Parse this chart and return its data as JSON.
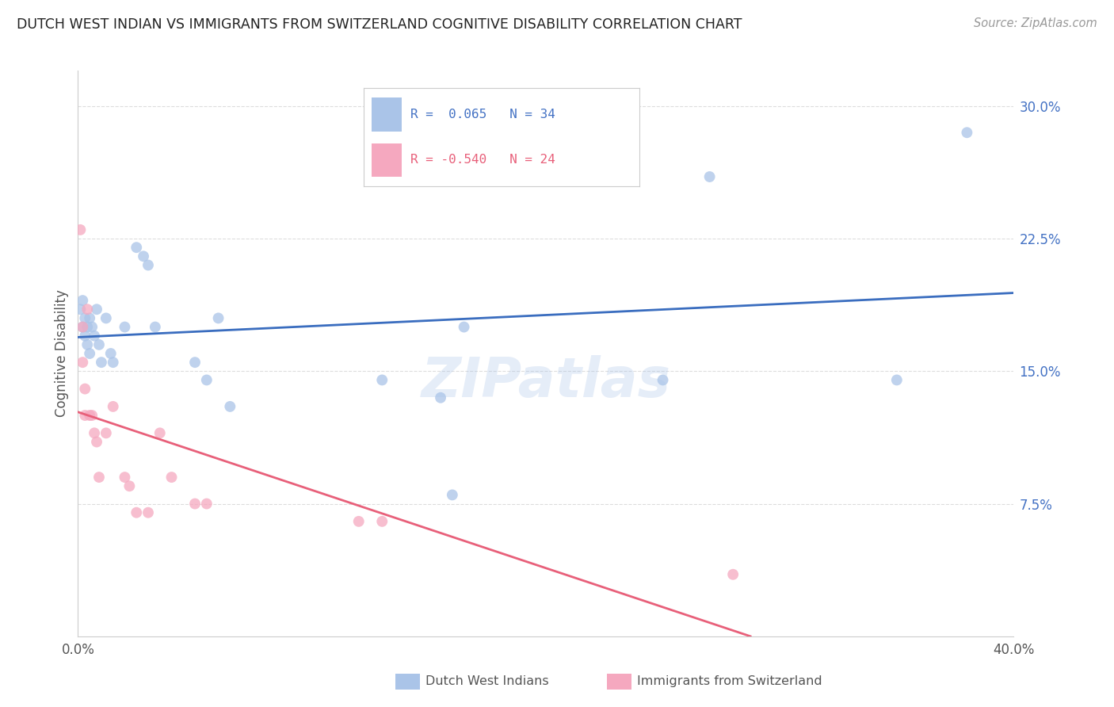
{
  "title": "DUTCH WEST INDIAN VS IMMIGRANTS FROM SWITZERLAND COGNITIVE DISABILITY CORRELATION CHART",
  "source": "Source: ZipAtlas.com",
  "ylabel": "Cognitive Disability",
  "right_yticks": [
    "30.0%",
    "22.5%",
    "15.0%",
    "7.5%"
  ],
  "right_ytick_vals": [
    0.3,
    0.225,
    0.15,
    0.075
  ],
  "xlim": [
    0.0,
    0.4
  ],
  "ylim": [
    0.0,
    0.32
  ],
  "legend_label1": "Dutch West Indians",
  "legend_label2": "Immigrants from Switzerland",
  "R1": 0.065,
  "N1": 34,
  "R2": -0.54,
  "N2": 24,
  "blue_color": "#aac4e8",
  "pink_color": "#f5a8bf",
  "blue_line_color": "#3a6dbf",
  "pink_line_color": "#e8607a",
  "blue_x": [
    0.001,
    0.002,
    0.002,
    0.003,
    0.003,
    0.004,
    0.004,
    0.005,
    0.005,
    0.006,
    0.007,
    0.008,
    0.009,
    0.01,
    0.012,
    0.014,
    0.015,
    0.02,
    0.025,
    0.028,
    0.03,
    0.033,
    0.05,
    0.055,
    0.06,
    0.065,
    0.13,
    0.155,
    0.16,
    0.165,
    0.25,
    0.27,
    0.35,
    0.38
  ],
  "blue_y": [
    0.185,
    0.19,
    0.175,
    0.18,
    0.17,
    0.175,
    0.165,
    0.18,
    0.16,
    0.175,
    0.17,
    0.185,
    0.165,
    0.155,
    0.18,
    0.16,
    0.155,
    0.175,
    0.22,
    0.215,
    0.21,
    0.175,
    0.155,
    0.145,
    0.18,
    0.13,
    0.145,
    0.135,
    0.08,
    0.175,
    0.145,
    0.26,
    0.145,
    0.285
  ],
  "pink_x": [
    0.001,
    0.002,
    0.002,
    0.003,
    0.003,
    0.004,
    0.005,
    0.006,
    0.007,
    0.008,
    0.009,
    0.012,
    0.015,
    0.02,
    0.022,
    0.025,
    0.03,
    0.035,
    0.04,
    0.05,
    0.055,
    0.12,
    0.13,
    0.28
  ],
  "pink_y": [
    0.23,
    0.175,
    0.155,
    0.14,
    0.125,
    0.185,
    0.125,
    0.125,
    0.115,
    0.11,
    0.09,
    0.115,
    0.13,
    0.09,
    0.085,
    0.07,
    0.07,
    0.115,
    0.09,
    0.075,
    0.075,
    0.065,
    0.065,
    0.035
  ],
  "watermark": "ZIPatlas",
  "background_color": "#ffffff",
  "grid_color": "#dddddd",
  "marker_size": 100,
  "marker_alpha": 0.75
}
